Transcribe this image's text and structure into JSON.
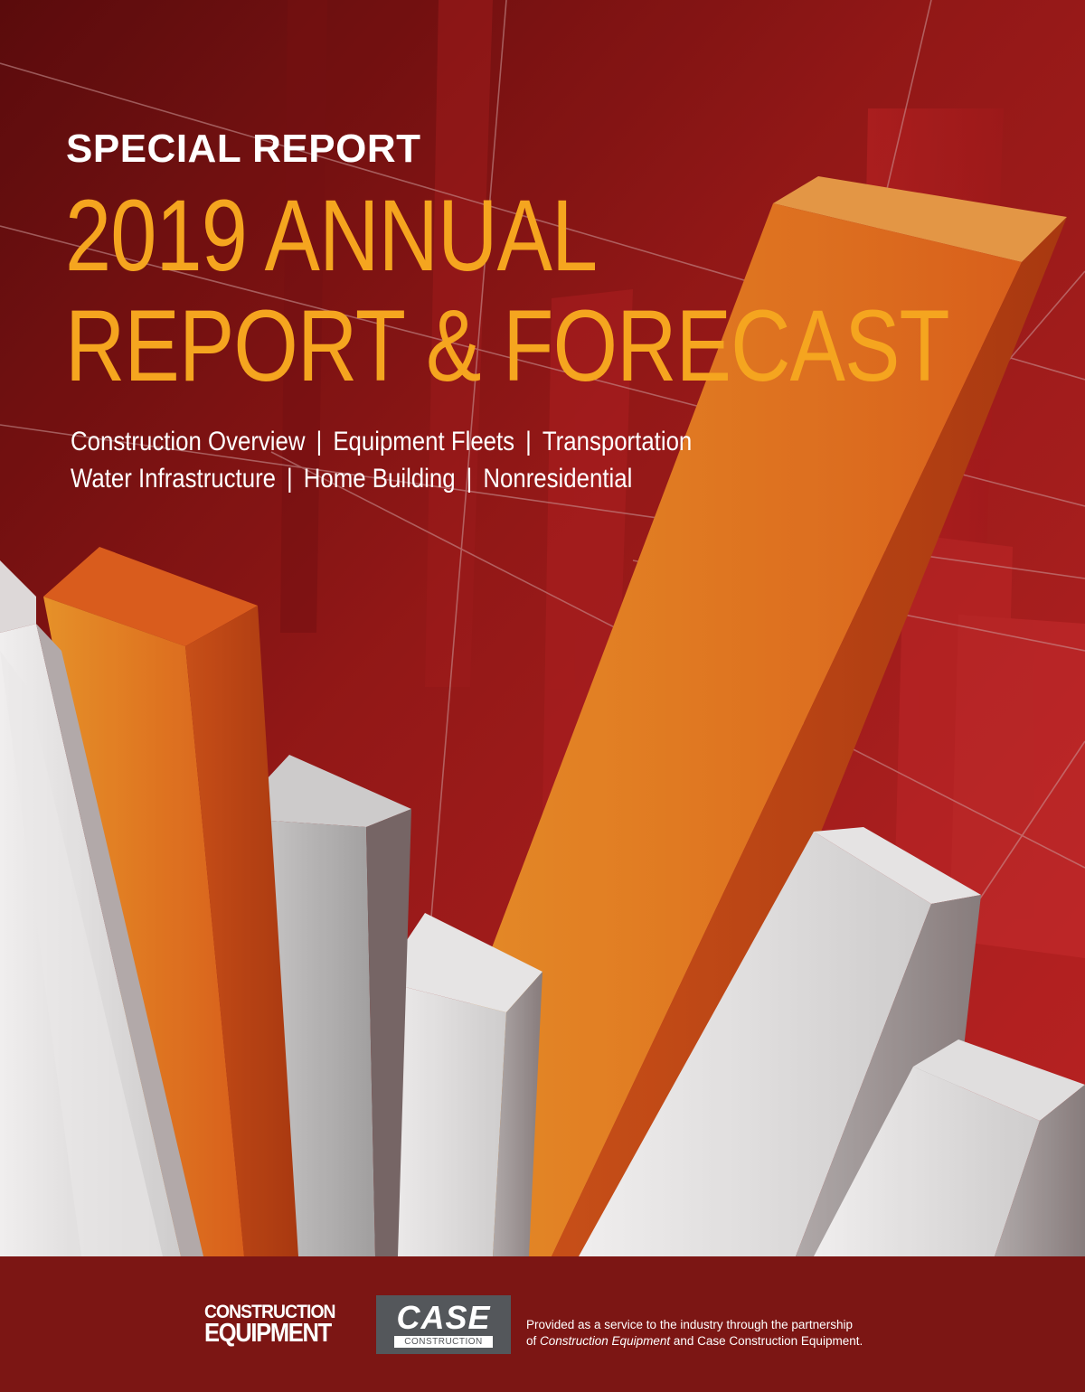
{
  "cover": {
    "kicker": "SPECIAL REPORT",
    "title_line1": "2019 ANNUAL",
    "title_line2": "REPORT & FORECAST",
    "topics_row1": [
      "Construction Overview",
      "Equipment Fleets",
      "Transportation"
    ],
    "topics_row2": [
      "Water Infrastructure",
      "Home Building",
      "Nonresidential"
    ],
    "separator": "|"
  },
  "footer": {
    "ce_logo_line1": "CONSTRUCTION",
    "ce_logo_line2": "EQUIPMENT",
    "case_logo_word": "CASE",
    "case_logo_sub": "CONSTRUCTION",
    "credit_line1": "Provided as a service to the industry through the partnership",
    "credit_line2_prefix": "of ",
    "credit_line2_italic": "Construction Equipment",
    "credit_line2_suffix": " and Case Construction Equipment."
  },
  "colors": {
    "title": "#f5a51f",
    "background_red": "#b61e1e",
    "footer": "#7c1614",
    "orange_bar": "#e8731f",
    "white_bar": "#eeeeee",
    "case_badge": "#54575b"
  }
}
